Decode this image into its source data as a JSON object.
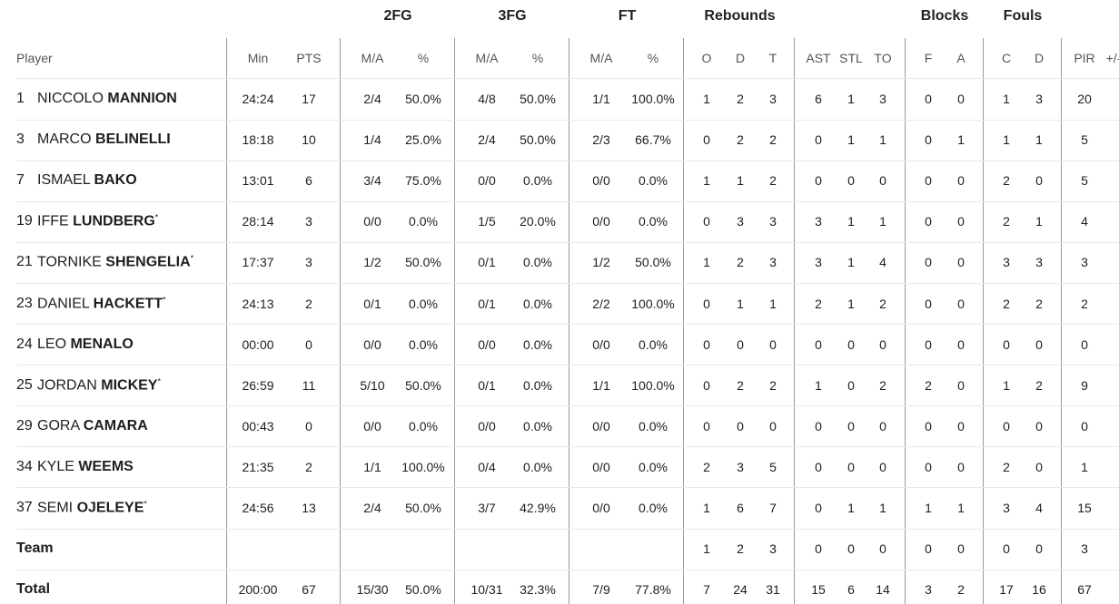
{
  "table": {
    "player_header": "Player",
    "segments": [
      {
        "label": null,
        "columns": [
          "Min",
          "PTS"
        ]
      },
      {
        "label": "2FG",
        "columns": [
          "M/A",
          "%"
        ]
      },
      {
        "label": "3FG",
        "columns": [
          "M/A",
          "%"
        ]
      },
      {
        "label": "FT",
        "columns": [
          "M/A",
          "%"
        ]
      },
      {
        "label": "Rebounds",
        "columns": [
          "O",
          "D",
          "T"
        ]
      },
      {
        "label": null,
        "columns": [
          "AST",
          "STL",
          "TO"
        ]
      },
      {
        "label": "Blocks",
        "columns": [
          "F",
          "A"
        ]
      },
      {
        "label": "Fouls",
        "columns": [
          "C",
          "D"
        ]
      },
      {
        "label": null,
        "columns": [
          "PIR",
          "+/-"
        ]
      }
    ],
    "players": [
      {
        "number": "1",
        "first": "NICCOLO",
        "last": "MANNION",
        "mark": null,
        "stats": [
          "24:24",
          "17",
          "2/4",
          "50.0%",
          "4/8",
          "50.0%",
          "1/1",
          "100.0%",
          "1",
          "2",
          "3",
          "6",
          "1",
          "3",
          "0",
          "0",
          "1",
          "3",
          "20"
        ]
      },
      {
        "number": "3",
        "first": "MARCO",
        "last": "BELINELLI",
        "mark": null,
        "stats": [
          "18:18",
          "10",
          "1/4",
          "25.0%",
          "2/4",
          "50.0%",
          "2/3",
          "66.7%",
          "0",
          "2",
          "2",
          "0",
          "1",
          "1",
          "0",
          "1",
          "1",
          "1",
          "5"
        ]
      },
      {
        "number": "7",
        "first": "ISMAEL",
        "last": "BAKO",
        "mark": null,
        "stats": [
          "13:01",
          "6",
          "3/4",
          "75.0%",
          "0/0",
          "0.0%",
          "0/0",
          "0.0%",
          "1",
          "1",
          "2",
          "0",
          "0",
          "0",
          "0",
          "0",
          "2",
          "0",
          "5"
        ]
      },
      {
        "number": "19",
        "first": "IFFE",
        "last": "LUNDBERG",
        "mark": "*",
        "stats": [
          "28:14",
          "3",
          "0/0",
          "0.0%",
          "1/5",
          "20.0%",
          "0/0",
          "0.0%",
          "0",
          "3",
          "3",
          "3",
          "1",
          "1",
          "0",
          "0",
          "2",
          "1",
          "4"
        ]
      },
      {
        "number": "21",
        "first": "TORNIKE",
        "last": "SHENGELIA",
        "mark": "*",
        "stats": [
          "17:37",
          "3",
          "1/2",
          "50.0%",
          "0/1",
          "0.0%",
          "1/2",
          "50.0%",
          "1",
          "2",
          "3",
          "3",
          "1",
          "4",
          "0",
          "0",
          "3",
          "3",
          "3"
        ]
      },
      {
        "number": "23",
        "first": "DANIEL",
        "last": "HACKETT",
        "mark": "*",
        "stats": [
          "24:13",
          "2",
          "0/1",
          "0.0%",
          "0/1",
          "0.0%",
          "2/2",
          "100.0%",
          "0",
          "1",
          "1",
          "2",
          "1",
          "2",
          "0",
          "0",
          "2",
          "2",
          "2"
        ]
      },
      {
        "number": "24",
        "first": "LEO",
        "last": "MENALO",
        "mark": null,
        "stats": [
          "00:00",
          "0",
          "0/0",
          "0.0%",
          "0/0",
          "0.0%",
          "0/0",
          "0.0%",
          "0",
          "0",
          "0",
          "0",
          "0",
          "0",
          "0",
          "0",
          "0",
          "0",
          "0"
        ]
      },
      {
        "number": "25",
        "first": "JORDAN",
        "last": "MICKEY",
        "mark": "*",
        "stats": [
          "26:59",
          "11",
          "5/10",
          "50.0%",
          "0/1",
          "0.0%",
          "1/1",
          "100.0%",
          "0",
          "2",
          "2",
          "1",
          "0",
          "2",
          "2",
          "0",
          "1",
          "2",
          "9"
        ]
      },
      {
        "number": "29",
        "first": "GORA",
        "last": "CAMARA",
        "mark": null,
        "stats": [
          "00:43",
          "0",
          "0/0",
          "0.0%",
          "0/0",
          "0.0%",
          "0/0",
          "0.0%",
          "0",
          "0",
          "0",
          "0",
          "0",
          "0",
          "0",
          "0",
          "0",
          "0",
          "0"
        ]
      },
      {
        "number": "34",
        "first": "KYLE",
        "last": "WEEMS",
        "mark": null,
        "stats": [
          "21:35",
          "2",
          "1/1",
          "100.0%",
          "0/4",
          "0.0%",
          "0/0",
          "0.0%",
          "2",
          "3",
          "5",
          "0",
          "0",
          "0",
          "0",
          "0",
          "2",
          "0",
          "1"
        ]
      },
      {
        "number": "37",
        "first": "SEMI",
        "last": "OJELEYE",
        "mark": "*",
        "stats": [
          "24:56",
          "13",
          "2/4",
          "50.0%",
          "3/7",
          "42.9%",
          "0/0",
          "0.0%",
          "1",
          "6",
          "7",
          "0",
          "1",
          "1",
          "1",
          "1",
          "3",
          "4",
          "15"
        ]
      }
    ],
    "totals": [
      {
        "label": "Team",
        "stats": [
          null,
          null,
          null,
          null,
          null,
          null,
          null,
          null,
          "1",
          "2",
          "3",
          "0",
          "0",
          "0",
          "0",
          "0",
          "0",
          "0",
          "3"
        ]
      },
      {
        "label": "Total",
        "stats": [
          "200:00",
          "67",
          "15/30",
          "50.0%",
          "10/31",
          "32.3%",
          "7/9",
          "77.8%",
          "7",
          "24",
          "31",
          "15",
          "6",
          "14",
          "3",
          "2",
          "17",
          "16",
          "67"
        ]
      }
    ]
  }
}
